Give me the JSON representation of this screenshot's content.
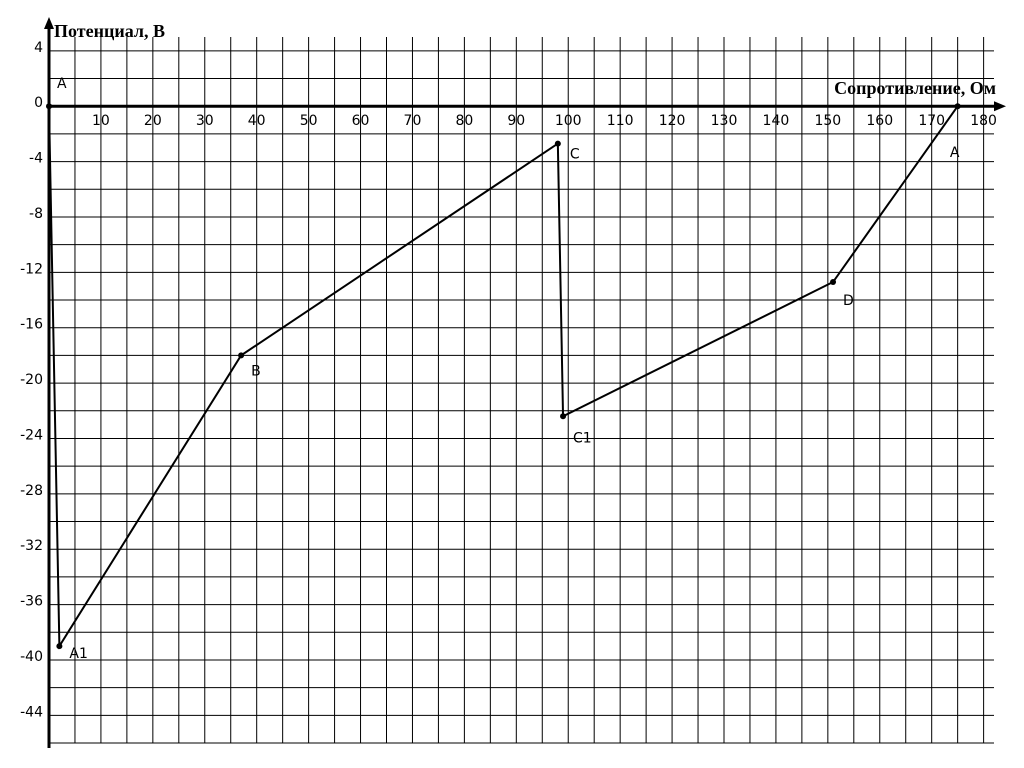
{
  "chart_data": {
    "type": "line",
    "x_label": "Сопротивление, Ом",
    "y_label": "Потенциал, В",
    "x": [
      0,
      2,
      37,
      98,
      99,
      151,
      175
    ],
    "values": [
      0,
      -39,
      -18,
      -2.7,
      -22.4,
      -12.7,
      0
    ],
    "point_labels": [
      "A",
      "A1",
      "B",
      "C",
      "C1",
      "D",
      "A"
    ],
    "color": "#000000",
    "xlim": [
      0,
      182
    ],
    "ylim": [
      -46,
      5
    ],
    "xticks": [
      10,
      20,
      30,
      40,
      50,
      60,
      70,
      80,
      90,
      100,
      110,
      120,
      130,
      140,
      150,
      160,
      170,
      180
    ],
    "yticks": [
      4,
      0,
      -4,
      -8,
      -12,
      -16,
      -20,
      -24,
      -28,
      -32,
      -36,
      -40,
      -44
    ],
    "grid": true
  }
}
